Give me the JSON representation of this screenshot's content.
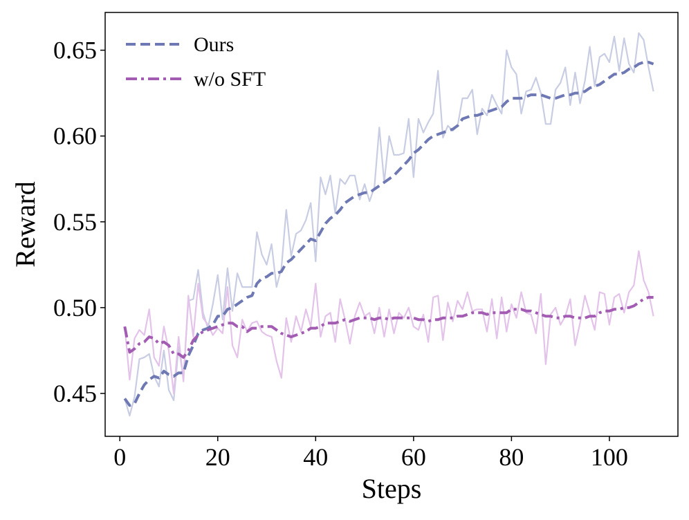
{
  "chart_data": {
    "type": "line",
    "title": "",
    "xlabel": "Steps",
    "ylabel": "Reward",
    "xlim": [
      -3,
      114
    ],
    "ylim": [
      0.425,
      0.672
    ],
    "xticks": [
      0,
      20,
      40,
      60,
      80,
      100
    ],
    "xtick_labels": [
      "0",
      "20",
      "40",
      "60",
      "80",
      "100"
    ],
    "yticks": [
      0.45,
      0.5,
      0.55,
      0.6,
      0.65
    ],
    "ytick_labels": [
      "0.45",
      "0.50",
      "0.55",
      "0.60",
      "0.65"
    ],
    "grid": false,
    "legend_position": "top-left",
    "x": [
      1,
      2,
      3,
      4,
      5,
      6,
      7,
      8,
      9,
      10,
      11,
      12,
      13,
      14,
      15,
      16,
      17,
      18,
      19,
      20,
      21,
      22,
      23,
      24,
      25,
      26,
      27,
      28,
      29,
      30,
      31,
      32,
      33,
      34,
      35,
      36,
      37,
      38,
      39,
      40,
      41,
      42,
      43,
      44,
      45,
      46,
      47,
      48,
      49,
      50,
      51,
      52,
      53,
      54,
      55,
      56,
      57,
      58,
      59,
      60,
      61,
      62,
      63,
      64,
      65,
      66,
      67,
      68,
      69,
      70,
      71,
      72,
      73,
      74,
      75,
      76,
      77,
      78,
      79,
      80,
      81,
      82,
      83,
      84,
      85,
      86,
      87,
      88,
      89,
      90,
      91,
      92,
      93,
      94,
      95,
      96,
      97,
      98,
      99,
      100,
      101,
      102,
      103,
      104,
      105,
      106,
      107,
      108,
      109
    ],
    "series": [
      {
        "name": "Ours",
        "color": "#6e78b2",
        "raw_color": "#c8cde3",
        "style": "dashed",
        "raw": [
          0.447,
          0.437,
          0.448,
          0.47,
          0.471,
          0.473,
          0.46,
          0.454,
          0.475,
          0.452,
          0.446,
          0.477,
          0.459,
          0.504,
          0.505,
          0.522,
          0.497,
          0.488,
          0.502,
          0.519,
          0.493,
          0.523,
          0.498,
          0.52,
          0.512,
          0.512,
          0.512,
          0.544,
          0.531,
          0.525,
          0.537,
          0.512,
          0.523,
          0.557,
          0.53,
          0.543,
          0.545,
          0.551,
          0.561,
          0.527,
          0.576,
          0.566,
          0.577,
          0.555,
          0.575,
          0.572,
          0.577,
          0.577,
          0.563,
          0.572,
          0.562,
          0.57,
          0.605,
          0.573,
          0.6,
          0.589,
          0.589,
          0.59,
          0.61,
          0.576,
          0.61,
          0.602,
          0.608,
          0.613,
          0.638,
          0.599,
          0.606,
          0.603,
          0.606,
          0.622,
          0.622,
          0.627,
          0.601,
          0.616,
          0.612,
          0.624,
          0.618,
          0.613,
          0.65,
          0.64,
          0.636,
          0.613,
          0.626,
          0.627,
          0.634,
          0.625,
          0.607,
          0.607,
          0.627,
          0.631,
          0.64,
          0.618,
          0.637,
          0.619,
          0.632,
          0.652,
          0.629,
          0.646,
          0.648,
          0.643,
          0.658,
          0.638,
          0.657,
          0.642,
          0.637,
          0.66,
          0.656,
          0.64,
          0.626
        ],
        "smoothed": [
          0.447,
          0.443,
          0.444,
          0.45,
          0.455,
          0.458,
          0.46,
          0.459,
          0.463,
          0.461,
          0.46,
          0.462,
          0.462,
          0.472,
          0.478,
          0.485,
          0.487,
          0.488,
          0.49,
          0.495,
          0.495,
          0.499,
          0.5,
          0.502,
          0.504,
          0.506,
          0.507,
          0.514,
          0.517,
          0.518,
          0.52,
          0.52,
          0.521,
          0.526,
          0.528,
          0.531,
          0.534,
          0.537,
          0.54,
          0.539,
          0.544,
          0.549,
          0.552,
          0.554,
          0.557,
          0.561,
          0.563,
          0.565,
          0.566,
          0.567,
          0.567,
          0.569,
          0.571,
          0.573,
          0.575,
          0.577,
          0.58,
          0.583,
          0.586,
          0.59,
          0.592,
          0.595,
          0.598,
          0.6,
          0.601,
          0.602,
          0.603,
          0.604,
          0.606,
          0.61,
          0.611,
          0.612,
          0.612,
          0.613,
          0.614,
          0.615,
          0.616,
          0.617,
          0.62,
          0.622,
          0.622,
          0.622,
          0.623,
          0.624,
          0.624,
          0.624,
          0.623,
          0.622,
          0.622,
          0.623,
          0.624,
          0.624,
          0.625,
          0.625,
          0.626,
          0.628,
          0.629,
          0.63,
          0.632,
          0.634,
          0.636,
          0.636,
          0.637,
          0.639,
          0.64,
          0.642,
          0.643,
          0.643,
          0.642
        ]
      },
      {
        "name": "w/o SFT",
        "color": "#a25db3",
        "raw_color": "#e3c3ea",
        "style": "dashdot",
        "raw": [
          0.489,
          0.458,
          0.482,
          0.487,
          0.484,
          0.499,
          0.471,
          0.466,
          0.489,
          0.475,
          0.45,
          0.483,
          0.457,
          0.507,
          0.483,
          0.514,
          0.494,
          0.49,
          0.484,
          0.488,
          0.485,
          0.512,
          0.478,
          0.471,
          0.493,
          0.486,
          0.491,
          0.492,
          0.486,
          0.484,
          0.483,
          0.469,
          0.459,
          0.494,
          0.48,
          0.495,
          0.486,
          0.499,
          0.489,
          0.514,
          0.483,
          0.495,
          0.497,
          0.48,
          0.505,
          0.493,
          0.479,
          0.495,
          0.503,
          0.495,
          0.497,
          0.485,
          0.5,
          0.483,
          0.499,
          0.485,
          0.497,
          0.494,
          0.5,
          0.489,
          0.487,
          0.496,
          0.48,
          0.506,
          0.507,
          0.481,
          0.503,
          0.492,
          0.504,
          0.499,
          0.509,
          0.498,
          0.499,
          0.499,
          0.486,
          0.505,
          0.482,
          0.506,
          0.486,
          0.502,
          0.494,
          0.509,
          0.497,
          0.496,
          0.485,
          0.508,
          0.467,
          0.496,
          0.5,
          0.49,
          0.495,
          0.505,
          0.478,
          0.491,
          0.507,
          0.497,
          0.487,
          0.509,
          0.508,
          0.49,
          0.506,
          0.508,
          0.497,
          0.509,
          0.513,
          0.533,
          0.516,
          0.509,
          0.495
        ],
        "smoothed": [
          0.489,
          0.474,
          0.476,
          0.479,
          0.48,
          0.483,
          0.482,
          0.479,
          0.48,
          0.478,
          0.473,
          0.473,
          0.471,
          0.475,
          0.481,
          0.484,
          0.486,
          0.487,
          0.488,
          0.489,
          0.49,
          0.491,
          0.491,
          0.489,
          0.489,
          0.486,
          0.488,
          0.488,
          0.489,
          0.489,
          0.489,
          0.487,
          0.485,
          0.484,
          0.483,
          0.484,
          0.485,
          0.486,
          0.488,
          0.488,
          0.489,
          0.491,
          0.491,
          0.491,
          0.492,
          0.493,
          0.492,
          0.493,
          0.494,
          0.494,
          0.494,
          0.493,
          0.494,
          0.494,
          0.493,
          0.494,
          0.494,
          0.494,
          0.494,
          0.494,
          0.493,
          0.493,
          0.492,
          0.493,
          0.493,
          0.494,
          0.494,
          0.494,
          0.495,
          0.495,
          0.496,
          0.497,
          0.497,
          0.497,
          0.496,
          0.497,
          0.497,
          0.497,
          0.497,
          0.499,
          0.499,
          0.499,
          0.498,
          0.498,
          0.497,
          0.496,
          0.495,
          0.495,
          0.494,
          0.494,
          0.495,
          0.495,
          0.494,
          0.494,
          0.494,
          0.495,
          0.495,
          0.497,
          0.498,
          0.498,
          0.499,
          0.499,
          0.5,
          0.5,
          0.501,
          0.503,
          0.505,
          0.506,
          0.506
        ]
      }
    ]
  }
}
